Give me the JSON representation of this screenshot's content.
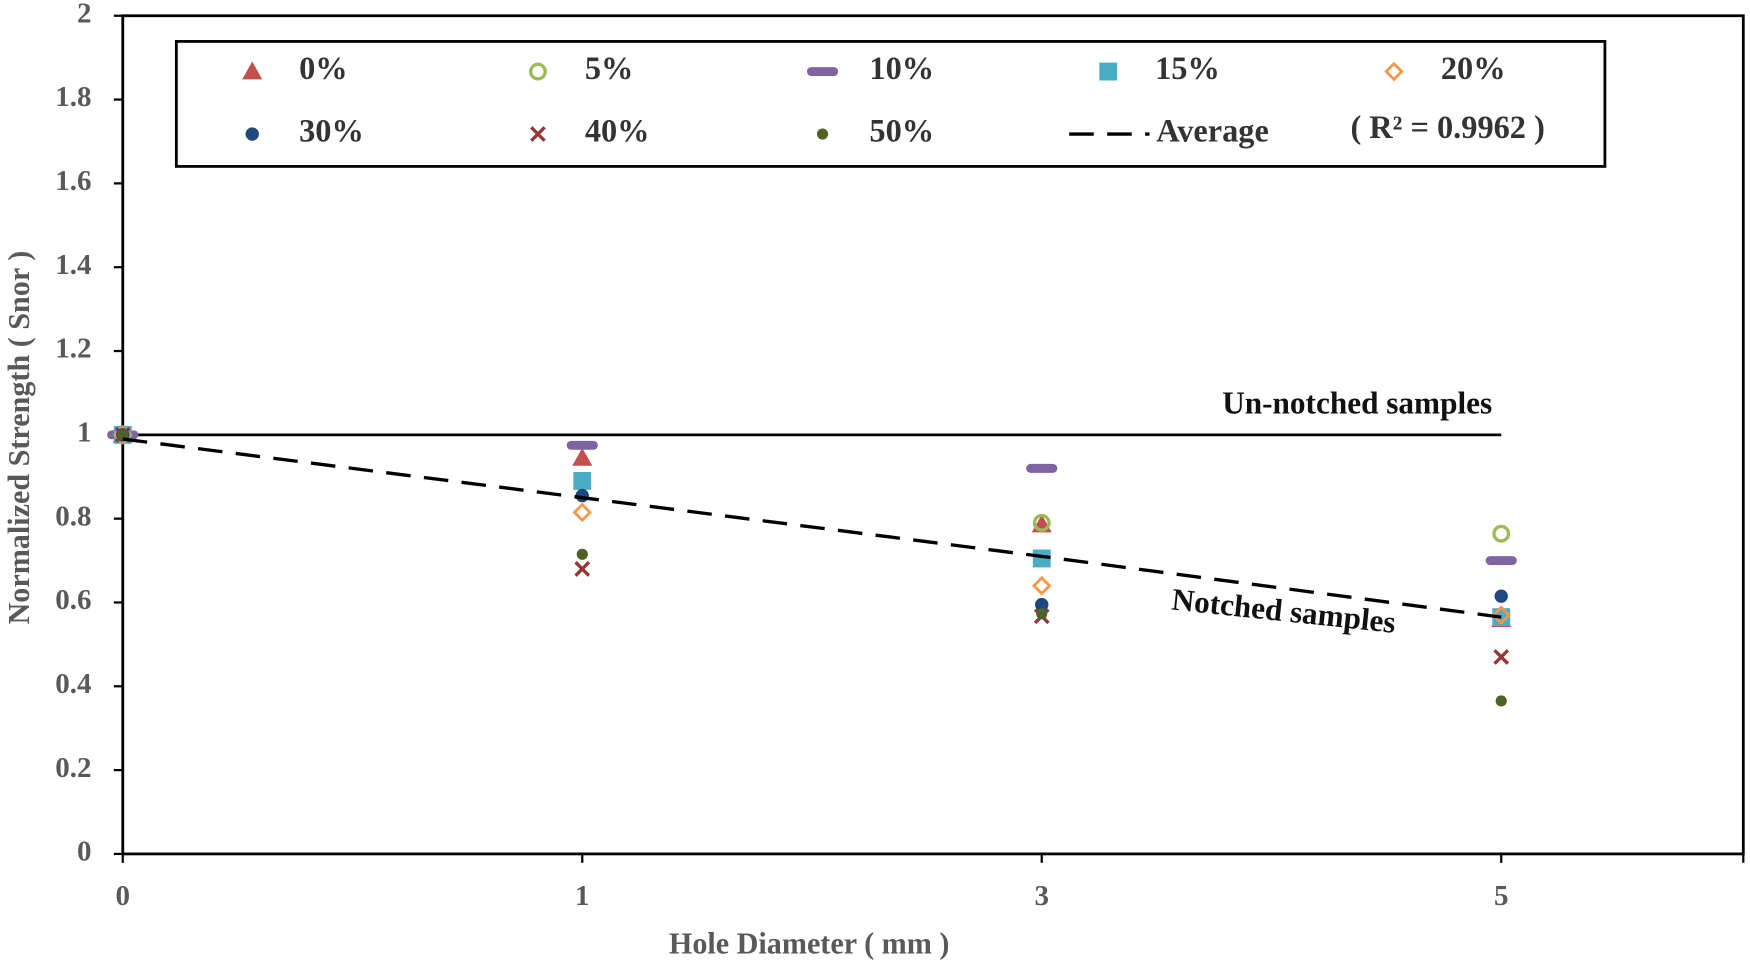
{
  "chart_data": {
    "type": "scatter",
    "x_label": "Hole Diameter ( mm )",
    "y_label": "Normalized Strength ( Snor )",
    "categories": [
      "0",
      "1",
      "3",
      "5"
    ],
    "ylim": [
      0,
      2
    ],
    "yticks": [
      0,
      0.2,
      0.4,
      0.6,
      0.8,
      1,
      1.2,
      1.4,
      1.6,
      1.8,
      2
    ],
    "legend": "top",
    "series": [
      {
        "name": "0%",
        "color": "#c0504d",
        "marker": "triangle",
        "values": [
          1.0,
          0.945,
          0.786,
          0.56
        ]
      },
      {
        "name": "5%",
        "color": "#9bbb59",
        "marker": "open-circle",
        "values": [
          1.0,
          null,
          0.79,
          0.764
        ]
      },
      {
        "name": "10%",
        "color": "#8064a2",
        "marker": "dash",
        "values": [
          1.0,
          0.975,
          0.92,
          0.7
        ]
      },
      {
        "name": "15%",
        "color": "#4bacc6",
        "marker": "square",
        "values": [
          1.0,
          0.89,
          0.705,
          0.565
        ]
      },
      {
        "name": "20%",
        "color": "#f79646",
        "marker": "open-diamond",
        "values": [
          1.0,
          0.815,
          0.64,
          0.57
        ]
      },
      {
        "name": "30%",
        "color": "#1f497d",
        "marker": "circle",
        "values": [
          1.0,
          0.855,
          0.595,
          0.615
        ]
      },
      {
        "name": "40%",
        "color": "#943634",
        "marker": "cross",
        "values": [
          1.0,
          0.68,
          0.567,
          0.47
        ]
      },
      {
        "name": "50%",
        "color": "#4f6228",
        "marker": "dot",
        "values": [
          1.0,
          0.715,
          0.573,
          0.365
        ]
      },
      {
        "name": "Average",
        "color": "#000000",
        "marker": "dashed-line",
        "values": [
          0.99,
          0.85,
          0.71,
          0.565
        ]
      }
    ],
    "r_squared_label": "( R² = 0.9962 )",
    "reference_line": {
      "value": 1,
      "label": "Un-notched samples",
      "color": "#000000"
    },
    "annotation": "Notched samples"
  }
}
